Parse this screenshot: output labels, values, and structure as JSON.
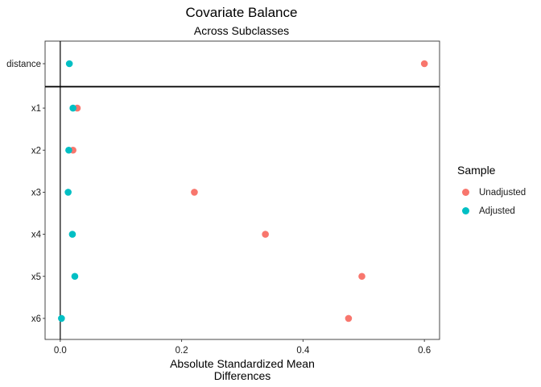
{
  "chart_data": {
    "type": "scatter",
    "title": "Covariate Balance",
    "subtitle": "Across Subclasses",
    "xlabel_lines": [
      "Absolute Standardized Mean",
      "Differences"
    ],
    "ylabel": "",
    "categories": [
      "distance",
      "x1",
      "x2",
      "x3",
      "x4",
      "x5",
      "x6"
    ],
    "xlim": [
      -0.025,
      0.625
    ],
    "xticks": [
      0.0,
      0.2,
      0.4,
      0.6
    ],
    "xtick_labels": [
      "0.0",
      "0.2",
      "0.4",
      "0.6"
    ],
    "reference_line_x": 0,
    "grid": false,
    "legend_title": "Sample",
    "legend_position": "right",
    "series": [
      {
        "name": "Unadjusted",
        "color": "#F8766D",
        "values": [
          0.6,
          0.028,
          0.021,
          0.221,
          0.338,
          0.497,
          0.475
        ]
      },
      {
        "name": "Adjusted",
        "color": "#00BFC4",
        "values": [
          0.015,
          0.021,
          0.014,
          0.013,
          0.02,
          0.024,
          0.002
        ]
      }
    ]
  }
}
